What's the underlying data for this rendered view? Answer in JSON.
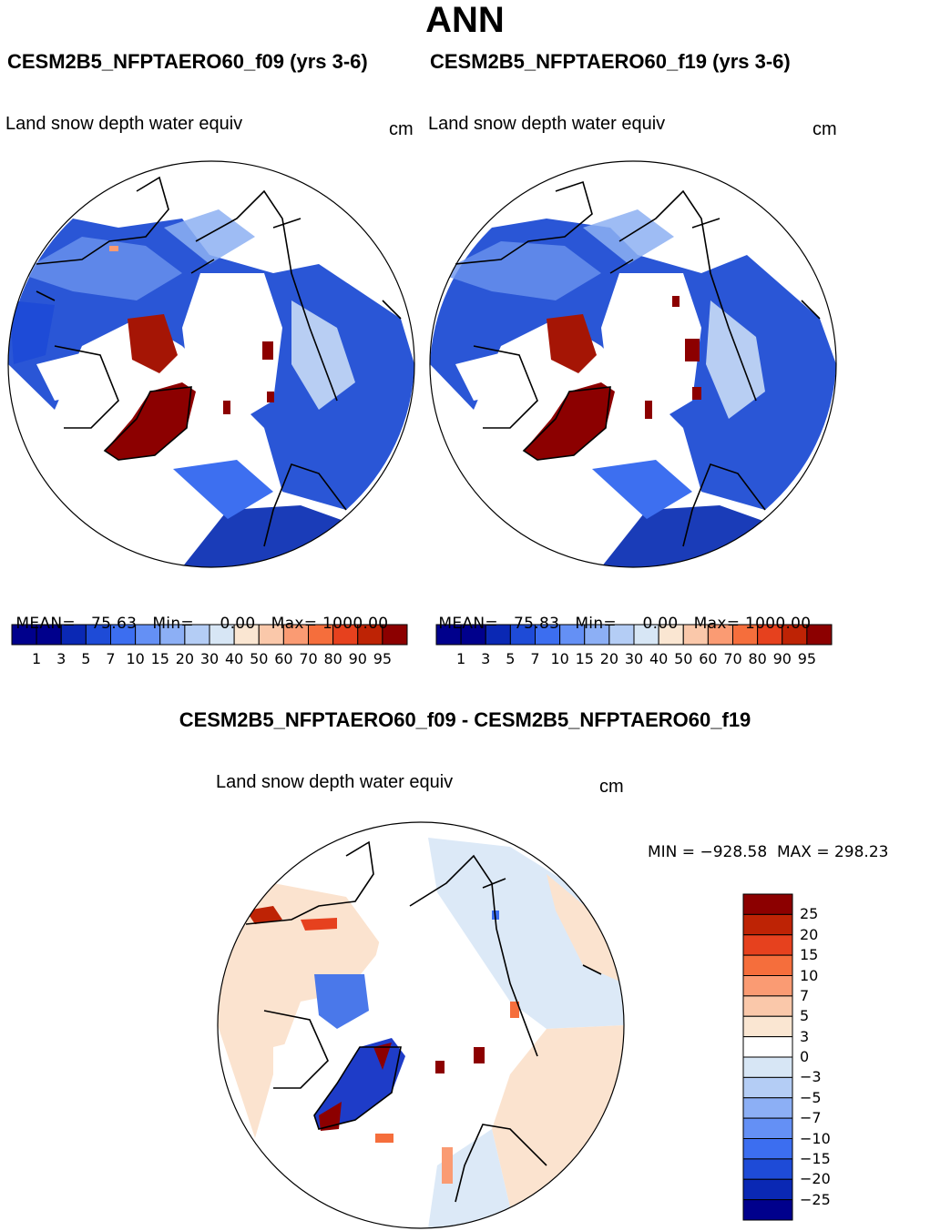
{
  "title": "ANN",
  "panels": [
    {
      "case": "CESM2B5_NFPTAERO60_f09 (yrs 3-6)",
      "variable": "Land snow depth water equiv",
      "units": "cm",
      "stats": {
        "mean_label": "MEAN=",
        "mean": "75.63",
        "min_label": "Min=",
        "min": "0.00",
        "max_label": "Max=",
        "max": "1000.00"
      }
    },
    {
      "case": "CESM2B5_NFPTAERO60_f19 (yrs 3-6)",
      "variable": "Land snow depth water equiv",
      "units": "cm",
      "stats": {
        "mean_label": "MEAN=",
        "mean": "75.83",
        "min_label": "Min=",
        "min": "0.00",
        "max_label": "Max=",
        "max": "1000.00"
      }
    }
  ],
  "colorbar": {
    "labels": [
      "1",
      "3",
      "5",
      "7",
      "10",
      "15",
      "20",
      "30",
      "40",
      "50",
      "60",
      "70",
      "80",
      "90",
      "95"
    ],
    "colors": [
      "#00008c",
      "#0a28b4",
      "#1e4bd7",
      "#3c6ef0",
      "#6490f5",
      "#8caff5",
      "#b4cdf5",
      "#d7e6f5",
      "#fae6d2",
      "#fac8aa",
      "#fa9b73",
      "#f56e3c",
      "#e6411e",
      "#be2305",
      "#8c0000"
    ]
  },
  "difference": {
    "title": "CESM2B5_NFPTAERO60_f09 - CESM2B5_NFPTAERO60_f19",
    "variable": "Land snow depth water equiv",
    "units": "cm",
    "minmax": "MIN = −928.58  MAX = 298.23",
    "colorbar_labels": [
      "25",
      "20",
      "15",
      "10",
      "7",
      "5",
      "3",
      "0",
      "−3",
      "−5",
      "−7",
      "−10",
      "−15",
      "−20",
      "−25"
    ],
    "colors": [
      "#8c0000",
      "#be2305",
      "#e6411e",
      "#f56e3c",
      "#fa9b73",
      "#fac8aa",
      "#fae6d2",
      "#ffffff",
      "#d7e6f5",
      "#b4cdf5",
      "#8caff5",
      "#6490f5",
      "#3c6ef0",
      "#1e4bd7",
      "#0a28b4",
      "#00008c"
    ]
  }
}
